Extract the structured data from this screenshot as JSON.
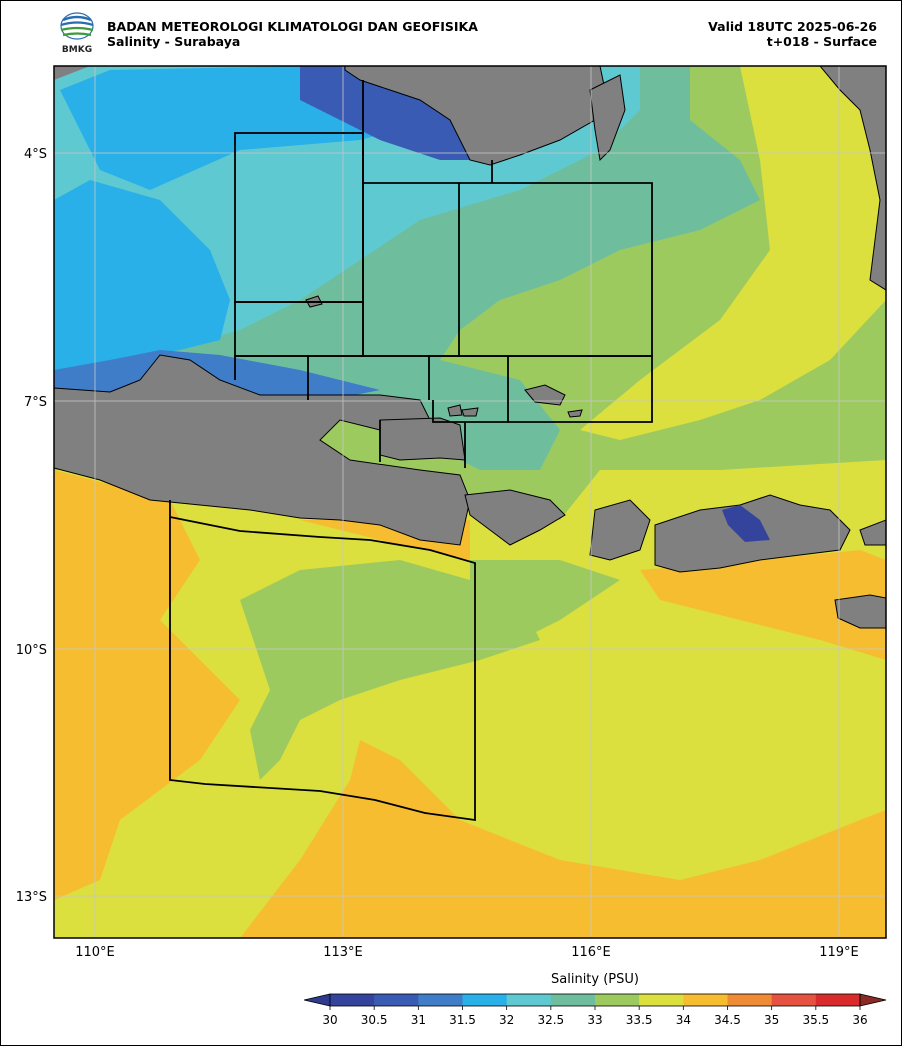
{
  "header": {
    "agency": "BADAN METEOROLOGI KLIMATOLOGI DAN GEOFISIKA",
    "product": "Salinity - Surabaya",
    "valid": "Valid 18UTC 2025-06-26",
    "lead": "t+018 - Surface",
    "logo_text": "BMKG"
  },
  "map": {
    "lon_labels": [
      "110°E",
      "113°E",
      "116°E",
      "119°E"
    ],
    "lat_labels": [
      "4°S",
      "7°S",
      "10°S",
      "13°S"
    ],
    "lon_range": [
      109.5,
      119.5
    ],
    "lat_range": [
      -13.5,
      -3.0
    ],
    "land_color": "#808080"
  },
  "colorbar": {
    "title": "Salinity (PSU)",
    "ticks": [
      "30",
      "30.5",
      "31",
      "31.5",
      "32",
      "32.5",
      "33",
      "33.5",
      "34",
      "34.5",
      "35",
      "35.5",
      "36"
    ],
    "colors": [
      "#34449c",
      "#3a5bb4",
      "#3f7dc9",
      "#29b0e8",
      "#5ec9d0",
      "#6ebe9e",
      "#9dca5e",
      "#dbe03f",
      "#f7bd30",
      "#ef8a35",
      "#e55240",
      "#d92b2b"
    ],
    "under_color": "#2e3a8c",
    "over_color": "#8b2a24"
  }
}
